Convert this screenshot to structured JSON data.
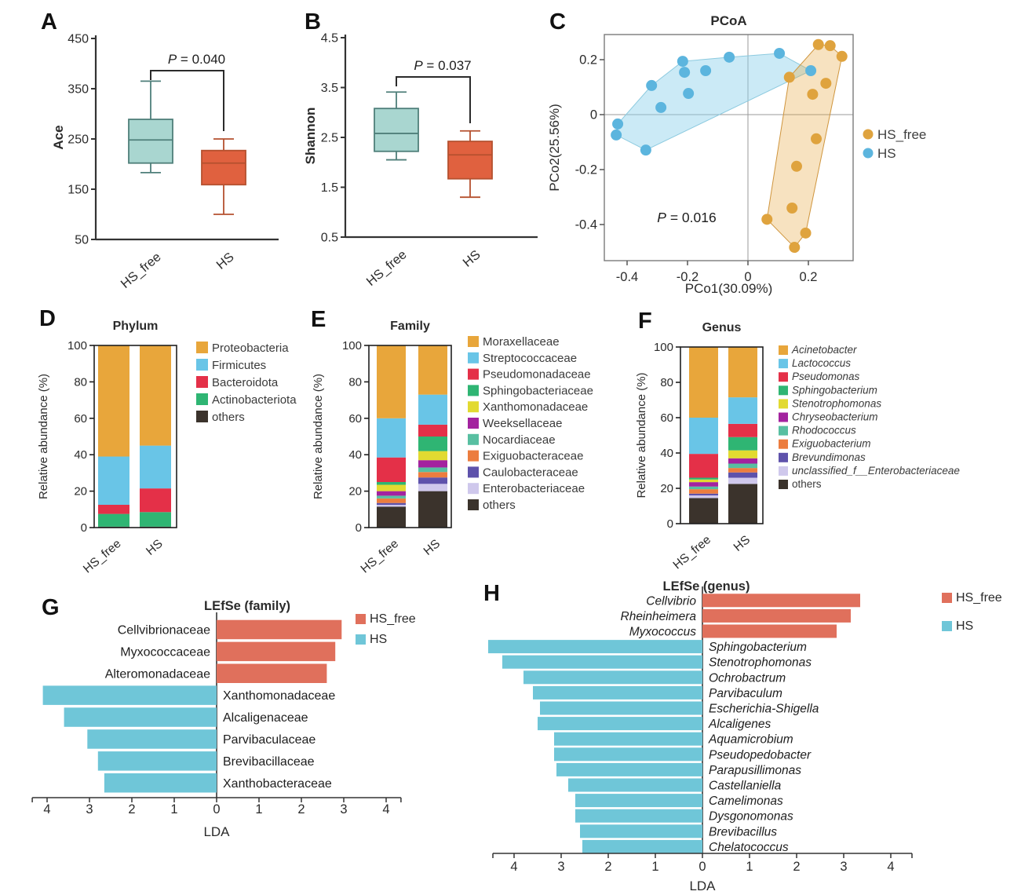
{
  "letters": [
    "A",
    "B",
    "C",
    "D",
    "E",
    "F",
    "G",
    "H"
  ],
  "palette": {
    "box_teal_fill": "#a9d6d0",
    "box_teal_stroke": "#4f7f7a",
    "box_red_fill": "#e0613f",
    "box_red_stroke": "#b5512f",
    "dot_orange": "#dfa33e",
    "dot_blue": "#5cb5de",
    "lefse_red": "#e0705c",
    "lefse_blue": "#6fc6d8",
    "stack_orange": "#e8a63b",
    "stack_lightblue": "#69c5e7",
    "stack_red": "#e43048",
    "stack_green": "#2fb573",
    "stack_yellow": "#e2da31",
    "stack_magenta": "#a3239f",
    "stack_teal": "#58bfa1",
    "stack_salmon": "#ec7d3f",
    "stack_indigo": "#5e52ab",
    "stack_lavender": "#cfc8ec",
    "stack_dark": "#3b332c"
  },
  "chart_data": [
    {
      "panel": "A",
      "type": "box",
      "ylabel": "Ace",
      "yticks": [
        450,
        350,
        250,
        150,
        50
      ],
      "ylim": [
        50,
        450
      ],
      "categories": [
        "HS_free",
        "HS"
      ],
      "p_label": "P = 0.040",
      "boxes": [
        {
          "group": "HS_free",
          "whisker_low": 183,
          "q1": 202,
          "median": 248,
          "q3": 289,
          "whisker_high": 365,
          "fill": "#a9d6d0",
          "stroke": "#4f7f7a"
        },
        {
          "group": "HS",
          "whisker_low": 100,
          "q1": 159,
          "median": 202,
          "q3": 227,
          "whisker_high": 250,
          "fill": "#e0613f",
          "stroke": "#b5512f"
        }
      ]
    },
    {
      "panel": "B",
      "type": "box",
      "ylabel": "Shannon",
      "yticks": [
        4.5,
        3.5,
        2.5,
        1.5,
        0.5
      ],
      "ylim": [
        0.5,
        4.5
      ],
      "categories": [
        "HS_free",
        "HS"
      ],
      "p_label": "P = 0.037",
      "boxes": [
        {
          "group": "HS_free",
          "whisker_low": 2.05,
          "q1": 2.22,
          "median": 2.58,
          "q3": 3.08,
          "whisker_high": 3.41,
          "fill": "#a9d6d0",
          "stroke": "#4f7f7a"
        },
        {
          "group": "HS",
          "whisker_low": 1.3,
          "q1": 1.67,
          "median": 2.15,
          "q3": 2.42,
          "whisker_high": 2.63,
          "fill": "#e0613f",
          "stroke": "#b5512f"
        }
      ]
    },
    {
      "panel": "C",
      "type": "scatter",
      "title": "PCoA",
      "xlabel": "PCo1(30.09%)",
      "ylabel": "PCo2(25.56%)",
      "xticks": [
        -0.4,
        -0.2,
        0,
        0.2
      ],
      "yticks": [
        0.2,
        0,
        -0.2,
        -0.4
      ],
      "xlim": [
        -0.475,
        0.348
      ],
      "ylim": [
        -0.53,
        0.29
      ],
      "p_label": "P = 0.016",
      "series": [
        {
          "name": "HS_free",
          "color": "#dfa33e",
          "hull_fill": "rgba(231,166,60,0.32)",
          "hull_stroke": "#cf953d",
          "points": [
            [
              0.233,
              0.255
            ],
            [
              0.272,
              0.251
            ],
            [
              0.311,
              0.212
            ],
            [
              0.137,
              0.136
            ],
            [
              0.258,
              0.114
            ],
            [
              0.214,
              0.074
            ],
            [
              0.226,
              -0.088
            ],
            [
              0.161,
              -0.188
            ],
            [
              0.146,
              -0.34
            ],
            [
              0.063,
              -0.381
            ],
            [
              0.191,
              -0.431
            ],
            [
              0.154,
              -0.483
            ]
          ],
          "hull": [
            [
              0.137,
              0.136
            ],
            [
              0.233,
              0.255
            ],
            [
              0.272,
              0.251
            ],
            [
              0.311,
              0.212
            ],
            [
              0.191,
              -0.431
            ],
            [
              0.154,
              -0.483
            ],
            [
              0.063,
              -0.381
            ]
          ]
        },
        {
          "name": "HS",
          "color": "#5cb5de",
          "hull_fill": "rgba(140,208,235,0.45)",
          "hull_stroke": "#8ccadf",
          "points": [
            [
              -0.431,
              -0.034
            ],
            [
              -0.436,
              -0.074
            ],
            [
              -0.338,
              -0.129
            ],
            [
              -0.319,
              0.106
            ],
            [
              -0.288,
              0.026
            ],
            [
              -0.216,
              0.194
            ],
            [
              -0.21,
              0.154
            ],
            [
              -0.197,
              0.077
            ],
            [
              -0.14,
              0.16
            ],
            [
              -0.062,
              0.209
            ],
            [
              0.104,
              0.223
            ],
            [
              0.208,
              0.16
            ]
          ],
          "hull": [
            [
              -0.431,
              -0.034
            ],
            [
              -0.319,
              0.106
            ],
            [
              -0.216,
              0.194
            ],
            [
              -0.062,
              0.209
            ],
            [
              0.104,
              0.223
            ],
            [
              0.208,
              0.16
            ],
            [
              -0.338,
              -0.129
            ],
            [
              -0.436,
              -0.074
            ]
          ]
        }
      ]
    },
    {
      "panel": "D",
      "type": "stacked-bar",
      "title": "Phylum",
      "ylabel": "Relative abundance (%)",
      "yticks": [
        0,
        20,
        40,
        60,
        80,
        100
      ],
      "categories": [
        "HS_free",
        "HS"
      ],
      "italic_legend": false,
      "series": [
        {
          "name": "Proteobacteria",
          "color": "#e8a63b",
          "values": [
            61,
            55
          ]
        },
        {
          "name": "Firmicutes",
          "color": "#69c5e7",
          "values": [
            26.5,
            23.5
          ]
        },
        {
          "name": "Bacteroidota",
          "color": "#e43048",
          "values": [
            5,
            13
          ]
        },
        {
          "name": "Actinobacteriota",
          "color": "#2fb573",
          "values": [
            7,
            8
          ]
        },
        {
          "name": "others",
          "color": "#3b332c",
          "values": [
            0.5,
            0.5
          ]
        }
      ]
    },
    {
      "panel": "E",
      "type": "stacked-bar",
      "title": "Family",
      "ylabel": "Relative abundance (%)",
      "yticks": [
        0,
        20,
        40,
        60,
        80,
        100
      ],
      "categories": [
        "HS_free",
        "HS"
      ],
      "italic_legend": false,
      "series": [
        {
          "name": "Moraxellaceae",
          "color": "#e8a63b",
          "values": [
            40,
            27
          ]
        },
        {
          "name": "Streptococcaceae",
          "color": "#69c5e7",
          "values": [
            21.5,
            16.5
          ]
        },
        {
          "name": "Pseudomonadaceae",
          "color": "#e43048",
          "values": [
            13.5,
            6.5
          ]
        },
        {
          "name": "Sphingobacteriaceae",
          "color": "#2fb573",
          "values": [
            1.5,
            8
          ]
        },
        {
          "name": "Xanthomonadaceae",
          "color": "#e2da31",
          "values": [
            3.5,
            5
          ]
        },
        {
          "name": "Weeksellaceae",
          "color": "#a3239f",
          "values": [
            2.5,
            4
          ]
        },
        {
          "name": "Nocardiaceae",
          "color": "#58bfa1",
          "values": [
            1.5,
            2.5
          ]
        },
        {
          "name": "Exiguobacteraceae",
          "color": "#ec7d3f",
          "values": [
            2.5,
            3
          ]
        },
        {
          "name": "Caulobacteraceae",
          "color": "#5e52ab",
          "values": [
            1,
            3.5
          ]
        },
        {
          "name": "Enterobacteriaceae",
          "color": "#cfc8ec",
          "values": [
            1,
            4
          ]
        },
        {
          "name": "others",
          "color": "#3b332c",
          "values": [
            11.5,
            20
          ]
        }
      ]
    },
    {
      "panel": "F",
      "type": "stacked-bar",
      "title": "Genus",
      "ylabel": "Relative abundance (%)",
      "yticks": [
        0,
        20,
        40,
        60,
        80,
        100
      ],
      "categories": [
        "HS_free",
        "HS"
      ],
      "italic_legend": true,
      "series": [
        {
          "name": "Acinetobacter",
          "color": "#e8a63b",
          "values": [
            40,
            28.5
          ]
        },
        {
          "name": "Lactococcus",
          "color": "#69c5e7",
          "values": [
            20.5,
            15
          ]
        },
        {
          "name": "Pseudomonas",
          "color": "#e43048",
          "values": [
            13.5,
            7.5
          ]
        },
        {
          "name": "Sphingobacterium",
          "color": "#2fb573",
          "values": [
            1,
            7.5
          ]
        },
        {
          "name": "Stenotrophomonas",
          "color": "#e2da31",
          "values": [
            1.5,
            4.5
          ]
        },
        {
          "name": "Chryseobacterium",
          "color": "#a3239f",
          "values": [
            2.5,
            3
          ]
        },
        {
          "name": "Rhodococcus",
          "color": "#58bfa1",
          "values": [
            1.5,
            2.5
          ]
        },
        {
          "name": "Exiguobacterium",
          "color": "#ec7d3f",
          "values": [
            2.5,
            2.5
          ]
        },
        {
          "name": "Brevundimonas",
          "color": "#5e52ab",
          "values": [
            1,
            3
          ]
        },
        {
          "name": "unclassified_f__Enterobacteriaceae",
          "color": "#cfc8ec",
          "values": [
            1.5,
            3.5
          ]
        },
        {
          "name": "others",
          "color": "#3b332c",
          "values": [
            14.5,
            22.5
          ]
        }
      ]
    },
    {
      "panel": "G",
      "type": "lefse",
      "title": "LEfSe (family)",
      "xlabel": "LDA",
      "xticks": [
        4,
        3,
        2,
        1,
        0,
        1,
        2,
        3,
        4
      ],
      "italic_labels": false,
      "groups": [
        {
          "name": "HS_free",
          "color": "#e0705c",
          "items": [
            [
              "Cellvibrionaceae",
              2.95
            ],
            [
              "Myxococcaceae",
              2.8
            ],
            [
              "Alteromonadaceae",
              2.6
            ]
          ]
        },
        {
          "name": "HS",
          "color": "#6fc6d8",
          "items": [
            [
              "Xanthomonadaceae",
              4.1
            ],
            [
              "Alcaligenaceae",
              3.6
            ],
            [
              "Parvibaculaceae",
              3.05
            ],
            [
              "Brevibacillaceae",
              2.8
            ],
            [
              "Xanthobacteraceae",
              2.65
            ]
          ]
        }
      ]
    },
    {
      "panel": "H",
      "type": "lefse",
      "title": "LEfSe (genus)",
      "xlabel": "LDA",
      "xticks": [
        4,
        3,
        2,
        1,
        0,
        1,
        2,
        3,
        4
      ],
      "italic_labels": true,
      "groups": [
        {
          "name": "HS_free",
          "color": "#e0705c",
          "items": [
            [
              "Cellvibrio",
              3.35
            ],
            [
              "Rheinheimera",
              3.15
            ],
            [
              "Myxococcus",
              2.85
            ]
          ]
        },
        {
          "name": "HS",
          "color": "#6fc6d8",
          "items": [
            [
              "Sphingobacterium",
              4.55
            ],
            [
              "Stenotrophomonas",
              4.25
            ],
            [
              "Ochrobactrum",
              3.8
            ],
            [
              "Parvibaculum",
              3.6
            ],
            [
              "Escherichia-Shigella",
              3.45
            ],
            [
              "Alcaligenes",
              3.5
            ],
            [
              "Aquamicrobium",
              3.15
            ],
            [
              "Pseudopedobacter",
              3.15
            ],
            [
              "Parapusillimonas",
              3.1
            ],
            [
              "Castellaniella",
              2.85
            ],
            [
              "Camelimonas",
              2.7
            ],
            [
              "Dysgonomonas",
              2.7
            ],
            [
              "Brevibacillus",
              2.6
            ],
            [
              "Chelatococcus",
              2.55
            ]
          ]
        }
      ]
    }
  ]
}
